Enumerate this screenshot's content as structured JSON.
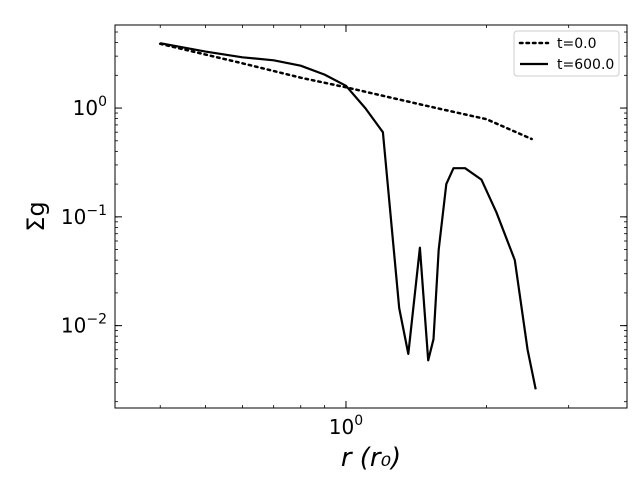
{
  "chart_data": {
    "type": "line",
    "xlabel": "r (r₀)",
    "ylabel": "Σg",
    "xscale": "log",
    "yscale": "log",
    "xlim": [
      0.32,
      4.0
    ],
    "ylim": [
      0.00175,
      5.8
    ],
    "grid": false,
    "legend_position": "top-right",
    "x_ticks": [
      {
        "value": 1.0,
        "label": "10^0"
      }
    ],
    "y_ticks": [
      {
        "value": 1.0,
        "label": "10^0"
      },
      {
        "value": 0.1,
        "label": "10^-1"
      },
      {
        "value": 0.01,
        "label": "10^-2"
      }
    ],
    "series": [
      {
        "name": "t=0.0",
        "style": "dotted",
        "color": "#000000",
        "x": [
          0.4,
          0.6,
          0.8,
          1.0,
          1.5,
          2.0,
          2.5
        ],
        "y": [
          3.9,
          2.58,
          1.9,
          1.55,
          1.04,
          0.79,
          0.52
        ]
      },
      {
        "name": "t=600.0",
        "style": "solid",
        "color": "#000000",
        "x": [
          0.4,
          0.5,
          0.6,
          0.7,
          0.8,
          0.9,
          1.0,
          1.1,
          1.2,
          1.3,
          1.36,
          1.44,
          1.5,
          1.54,
          1.58,
          1.64,
          1.7,
          1.8,
          1.95,
          2.1,
          2.3,
          2.45,
          2.55
        ],
        "y": [
          3.95,
          3.3,
          2.93,
          2.75,
          2.45,
          2.03,
          1.6,
          1.0,
          0.6,
          0.0145,
          0.0055,
          0.052,
          0.0048,
          0.0075,
          0.05,
          0.2,
          0.28,
          0.28,
          0.22,
          0.11,
          0.04,
          0.006,
          0.0026
        ]
      }
    ]
  }
}
